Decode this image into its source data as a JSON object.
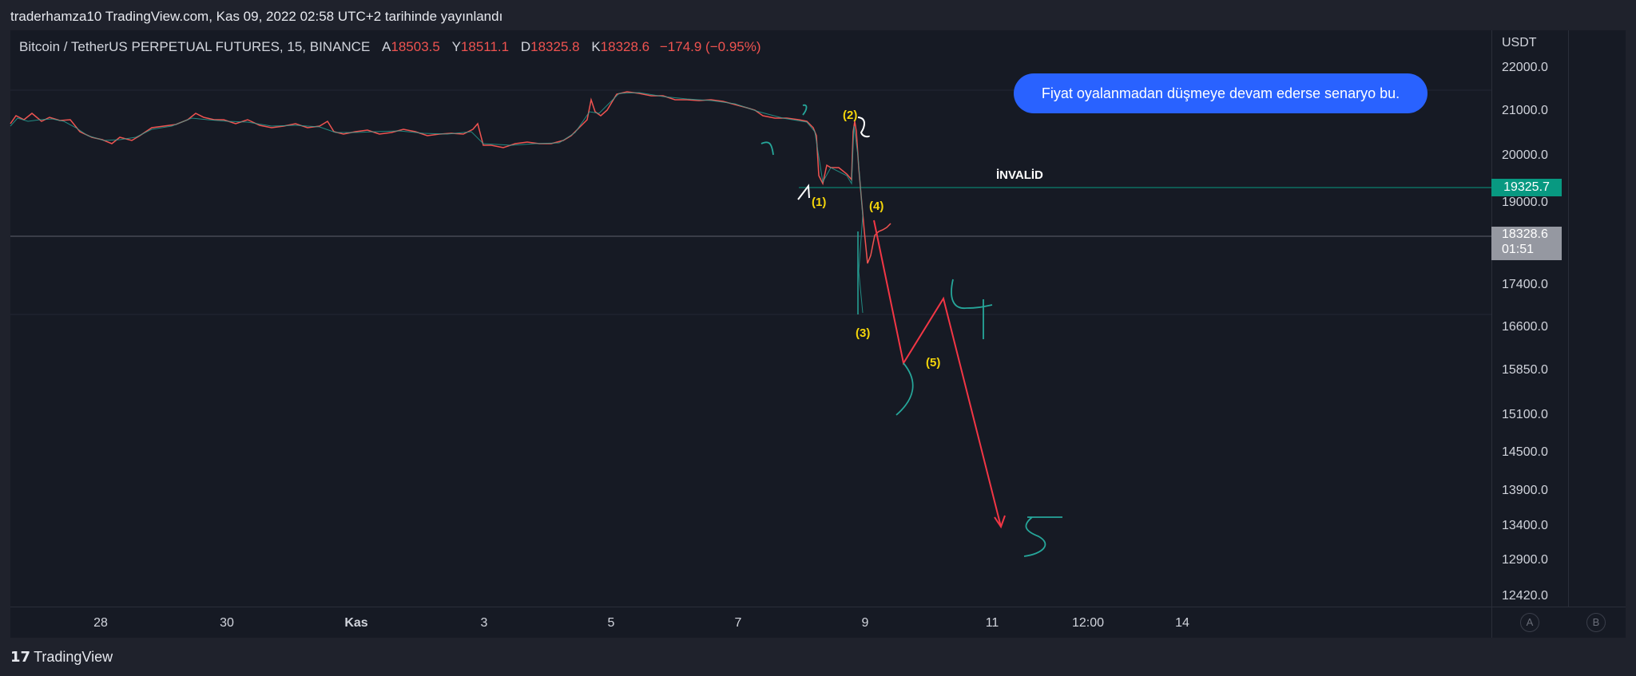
{
  "header": {
    "publish_info": "traderhamza10 TradingView.com, Kas 09, 2022 02:58 UTC+2 tarihinde yayınlandı"
  },
  "legend": {
    "symbol": "Bitcoin / TetherUS PERPETUAL FUTURES, 15, BINANCE",
    "a_label": "A",
    "a_value": "18503.5",
    "y_label": "Y",
    "y_value": "18511.1",
    "d_label": "D",
    "d_value": "18325.8",
    "k_label": "K",
    "k_value": "18328.6",
    "change": "−174.9 (−0.95%)"
  },
  "price_scale": {
    "unit": "USDT",
    "ticks": [
      "22000.0",
      "21000.0",
      "20000.0",
      "19000.0",
      "17400.0",
      "16600.0",
      "15850.0",
      "15100.0",
      "14500.0",
      "13900.0",
      "13400.0",
      "12900.0",
      "12420.0"
    ],
    "level_label": "19325.7",
    "last_price": "18328.6",
    "countdown": "01:51"
  },
  "time_axis": {
    "ticks": [
      "28",
      "30",
      "Kas",
      "3",
      "5",
      "7",
      "9",
      "11",
      "12:00",
      "14"
    ]
  },
  "scale_buttons": {
    "a": "A",
    "b": "B"
  },
  "annotations": {
    "bubble_text": "Fiyat oyalanmadan düşmeye devam ederse senaryo bu.",
    "invalid_label": "İNVALİD",
    "wave_labels": [
      "(1)",
      "(2)",
      "(3)",
      "(4)",
      "(5)"
    ]
  },
  "colors": {
    "up": "#26a69a",
    "down": "#ef5350",
    "level": "#089981",
    "projection": "#f23645",
    "bubble": "#2962ff",
    "wave_label": "#f5d60a"
  },
  "footer": {
    "brand": "TradingView",
    "logo": "tradingview-logo-icon"
  }
}
